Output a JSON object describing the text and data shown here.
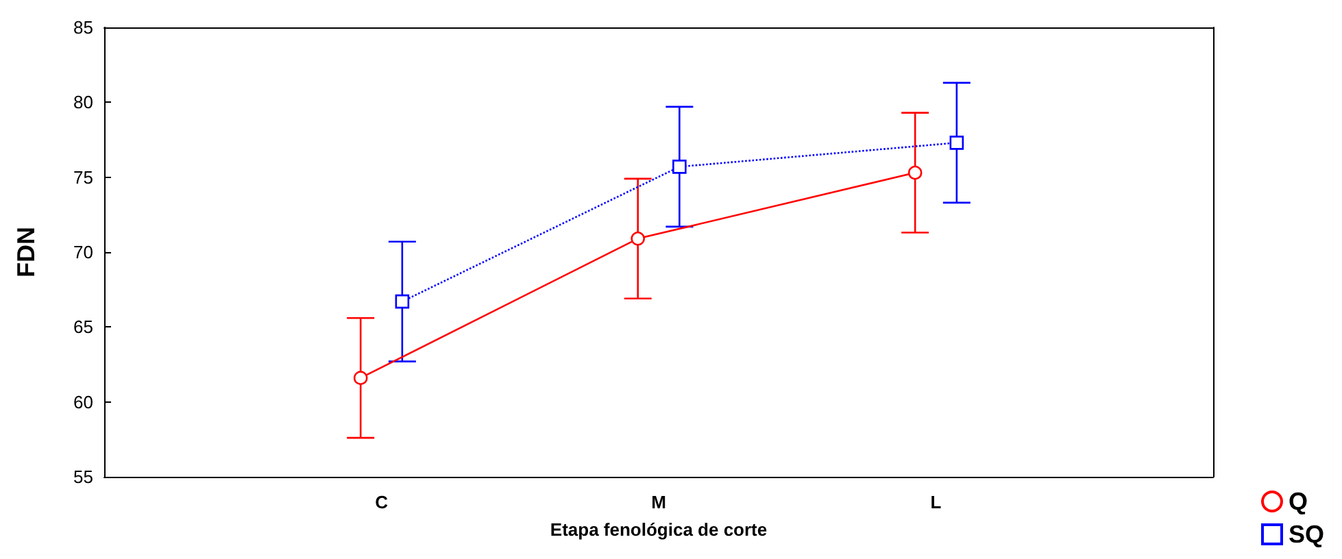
{
  "chart_data": {
    "type": "line",
    "xlabel": "Etapa fenológica de corte",
    "ylabel": "FDN",
    "categories": [
      "C",
      "M",
      "L"
    ],
    "series": [
      {
        "name": "Q",
        "color": "#ff0000",
        "values": [
          61.6,
          70.9,
          75.3
        ],
        "errors": [
          4,
          4,
          4
        ],
        "marker": "circle",
        "line_style": "solid"
      },
      {
        "name": "SQ",
        "color": "#0000ff",
        "values": [
          66.7,
          75.7,
          77.3
        ],
        "errors": [
          4,
          4,
          4
        ],
        "marker": "square",
        "line_style": "dotted"
      }
    ],
    "ylim": [
      55,
      85
    ],
    "yticks": [
      55,
      60,
      65,
      70,
      75,
      80,
      85
    ],
    "grid": false,
    "legend": "bottom right"
  }
}
